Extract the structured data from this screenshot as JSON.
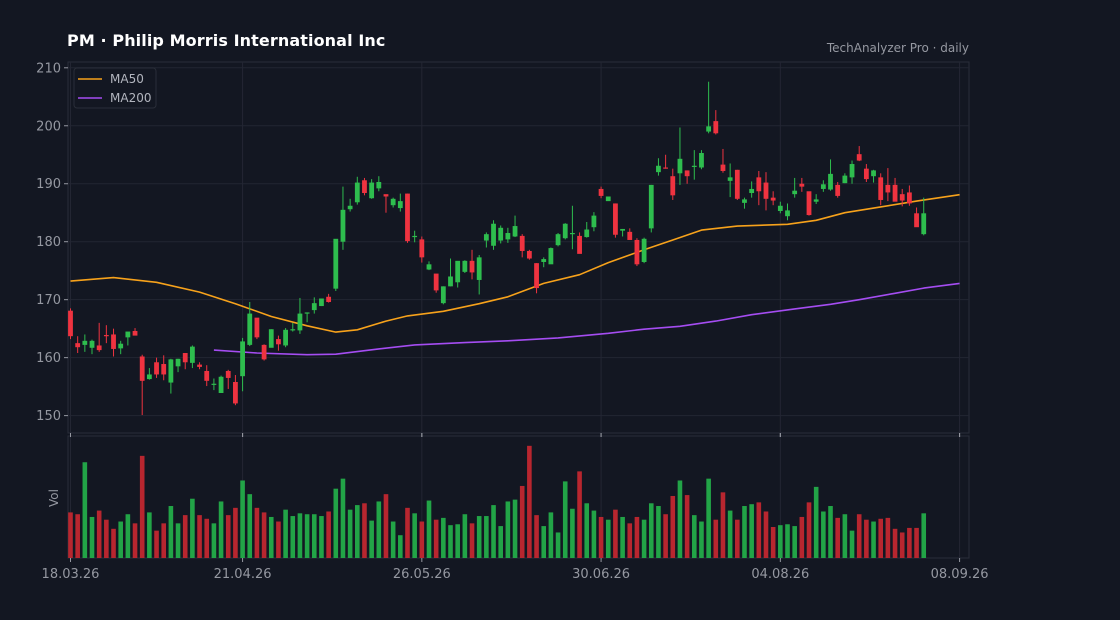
{
  "header": {
    "title": "PM  ·  Philip Morris International Inc",
    "source": "TechAnalyzer Pro · daily"
  },
  "colors": {
    "background": "#131722",
    "up": "#26a69a",
    "up_fill": "#2ebd4e",
    "down": "#ef3340",
    "ma50": "#f7a21b",
    "ma200": "#a54df2",
    "grid": "#232633"
  },
  "chart_data": {
    "type": "candlestick",
    "title": "PM  ·  Philip Morris International Inc",
    "price_axis": {
      "ylim": [
        147,
        211
      ],
      "ticks": [
        150,
        160,
        170,
        180,
        190,
        200,
        210
      ]
    },
    "volume_axis": {
      "label": "Vol"
    },
    "x_ticks": [
      "18.03.26",
      "21.04.26",
      "26.05.26",
      "30.06.26",
      "04.08.26",
      "08.09.26"
    ],
    "x_tick_index": [
      0,
      24,
      49,
      74,
      99,
      124
    ],
    "legend": {
      "placement": "top-left",
      "entries": [
        "MA50",
        "MA200"
      ]
    },
    "grid": true,
    "candles": [
      [
        168.1,
        168.5,
        163.2,
        163.7,
        0.5
      ],
      [
        162.5,
        163.7,
        160.8,
        161.8,
        0.48
      ],
      [
        162.2,
        164.0,
        161.0,
        162.9,
        1.05
      ],
      [
        161.7,
        163.1,
        160.6,
        162.9,
        0.45
      ],
      [
        162.1,
        166.0,
        161.0,
        161.3,
        0.52
      ],
      [
        163.9,
        165.6,
        162.5,
        163.8,
        0.42
      ],
      [
        164.0,
        165.0,
        160.2,
        161.5,
        0.32
      ],
      [
        161.6,
        162.9,
        160.6,
        162.4,
        0.4
      ],
      [
        163.5,
        164.4,
        162.1,
        164.5,
        0.48
      ],
      [
        164.6,
        165.1,
        164.0,
        163.8,
        0.38
      ],
      [
        160.2,
        160.5,
        150.1,
        156.0,
        1.12
      ],
      [
        156.3,
        158.2,
        156.2,
        157.1,
        0.5
      ],
      [
        159.2,
        160.0,
        156.5,
        157.1,
        0.3
      ],
      [
        158.9,
        160.4,
        156.1,
        157.1,
        0.38
      ],
      [
        155.7,
        159.8,
        153.8,
        159.7,
        0.57
      ],
      [
        158.5,
        159.8,
        157.5,
        159.8,
        0.38
      ],
      [
        160.8,
        160.5,
        158.0,
        159.2,
        0.47
      ],
      [
        159.1,
        162.1,
        158.2,
        161.9,
        0.65
      ],
      [
        158.8,
        159.2,
        158.0,
        158.4,
        0.47
      ],
      [
        157.7,
        158.7,
        155.1,
        156.0,
        0.43
      ],
      [
        155.4,
        156.4,
        154.4,
        155.5,
        0.38
      ],
      [
        153.9,
        156.9,
        154.1,
        156.7,
        0.62
      ],
      [
        157.7,
        157.9,
        154.6,
        156.5,
        0.47
      ],
      [
        155.8,
        157.0,
        151.8,
        152.1,
        0.55
      ],
      [
        156.8,
        163.4,
        154.2,
        162.8,
        0.85
      ],
      [
        162.2,
        169.6,
        162.0,
        167.6,
        0.7
      ],
      [
        166.9,
        166.8,
        163.2,
        163.5,
        0.55
      ],
      [
        162.2,
        162.3,
        159.5,
        159.7,
        0.5
      ],
      [
        161.7,
        164.9,
        162.0,
        164.9,
        0.45
      ],
      [
        163.2,
        163.8,
        161.2,
        162.3,
        0.4
      ],
      [
        162.1,
        165.1,
        161.8,
        164.8,
        0.53
      ],
      [
        164.9,
        166.0,
        164.5,
        164.9,
        0.46
      ],
      [
        164.7,
        170.3,
        164.1,
        167.6,
        0.49
      ],
      [
        167.8,
        167.8,
        166.1,
        167.8,
        0.48
      ],
      [
        168.2,
        170.4,
        167.6,
        169.4,
        0.48
      ],
      [
        168.9,
        170.2,
        168.9,
        170.2,
        0.46
      ],
      [
        170.5,
        171.0,
        169.5,
        169.6,
        0.51
      ],
      [
        171.9,
        180.4,
        171.5,
        180.5,
        0.76
      ],
      [
        180.0,
        189.5,
        178.6,
        185.5,
        0.87
      ],
      [
        185.6,
        187.4,
        185.2,
        186.2,
        0.53
      ],
      [
        186.8,
        191.2,
        186.4,
        190.2,
        0.58
      ],
      [
        190.6,
        191.0,
        188.0,
        188.4,
        0.6
      ],
      [
        187.5,
        190.8,
        187.4,
        190.2,
        0.41
      ],
      [
        189.2,
        191.3,
        188.7,
        190.3,
        0.62
      ],
      [
        188.2,
        188.1,
        185.0,
        187.8,
        0.7
      ],
      [
        186.3,
        187.6,
        185.9,
        187.4,
        0.4
      ],
      [
        185.8,
        188.3,
        185.2,
        187.0,
        0.25
      ],
      [
        188.3,
        188.3,
        179.8,
        180.1,
        0.55
      ],
      [
        181.0,
        181.9,
        179.9,
        181.0,
        0.49
      ],
      [
        180.4,
        180.9,
        176.4,
        177.3,
        0.4
      ],
      [
        175.2,
        176.6,
        175.1,
        176.1,
        0.63
      ],
      [
        174.5,
        174.3,
        171.2,
        171.6,
        0.42
      ],
      [
        169.4,
        172.3,
        169.2,
        172.3,
        0.44
      ],
      [
        172.3,
        177.1,
        172.3,
        174.0,
        0.36
      ],
      [
        173.0,
        176.3,
        172.1,
        176.7,
        0.37
      ],
      [
        174.8,
        176.8,
        174.6,
        176.7,
        0.48
      ],
      [
        176.7,
        178.6,
        173.5,
        174.7,
        0.38
      ],
      [
        173.4,
        177.7,
        170.9,
        177.3,
        0.46
      ],
      [
        180.2,
        181.6,
        179.0,
        181.3,
        0.46
      ],
      [
        179.3,
        183.7,
        178.6,
        183.1,
        0.58
      ],
      [
        180.2,
        182.8,
        179.7,
        182.4,
        0.35
      ],
      [
        180.4,
        182.4,
        179.8,
        181.5,
        0.62
      ],
      [
        180.9,
        184.5,
        180.8,
        182.7,
        0.64
      ],
      [
        181.0,
        181.3,
        177.3,
        178.4,
        0.79
      ],
      [
        178.4,
        178.6,
        176.9,
        177.1,
        1.23
      ],
      [
        176.3,
        176.3,
        171.1,
        172.0,
        0.47
      ],
      [
        176.5,
        177.3,
        175.6,
        177.0,
        0.35
      ],
      [
        176.1,
        179.0,
        176.2,
        178.9,
        0.5
      ],
      [
        179.4,
        181.5,
        179.2,
        181.3,
        0.28
      ],
      [
        180.6,
        183.2,
        180.4,
        183.1,
        0.84
      ],
      [
        181.5,
        186.2,
        178.7,
        181.5,
        0.54
      ],
      [
        181.0,
        181.6,
        178.0,
        177.9,
        0.95
      ],
      [
        180.8,
        183.4,
        180.7,
        182.1,
        0.6
      ],
      [
        182.5,
        185.1,
        181.8,
        184.5,
        0.52
      ],
      [
        189.1,
        189.5,
        187.5,
        187.9,
        0.45
      ],
      [
        187.0,
        187.4,
        187.2,
        187.8,
        0.42
      ],
      [
        186.6,
        186.6,
        180.7,
        181.2,
        0.53
      ],
      [
        181.9,
        182.2,
        180.9,
        182.2,
        0.45
      ],
      [
        181.7,
        182.3,
        180.6,
        180.3,
        0.38
      ],
      [
        180.3,
        180.6,
        175.8,
        176.1,
        0.45
      ],
      [
        176.5,
        180.7,
        176.3,
        180.5,
        0.42
      ],
      [
        182.3,
        189.8,
        181.6,
        189.8,
        0.6
      ],
      [
        192.0,
        194.4,
        191.4,
        193.1,
        0.57
      ],
      [
        192.8,
        195.0,
        192.6,
        192.6,
        0.48
      ],
      [
        191.3,
        192.6,
        187.2,
        188.0,
        0.68
      ],
      [
        191.8,
        199.7,
        189.8,
        194.3,
        0.85
      ],
      [
        192.3,
        192.3,
        190.0,
        191.3,
        0.69
      ],
      [
        192.9,
        195.8,
        190.7,
        193.1,
        0.47
      ],
      [
        192.8,
        195.8,
        192.5,
        195.3,
        0.4
      ],
      [
        199.0,
        207.6,
        198.7,
        199.9,
        0.87
      ],
      [
        200.8,
        202.7,
        198.5,
        198.7,
        0.42
      ],
      [
        193.3,
        196.0,
        191.9,
        192.2,
        0.72
      ],
      [
        190.5,
        193.5,
        187.7,
        191.1,
        0.52
      ],
      [
        192.4,
        192.4,
        187.2,
        187.4,
        0.42
      ],
      [
        186.7,
        187.6,
        185.7,
        187.3,
        0.57
      ],
      [
        188.4,
        190.4,
        187.6,
        189.1,
        0.59
      ],
      [
        191.1,
        192.2,
        186.3,
        188.7,
        0.61
      ],
      [
        190.2,
        192.0,
        185.4,
        187.4,
        0.51
      ],
      [
        187.6,
        188.7,
        186.3,
        187.1,
        0.34
      ],
      [
        185.3,
        186.9,
        184.9,
        186.2,
        0.36
      ],
      [
        184.4,
        186.6,
        183.7,
        185.4,
        0.37
      ],
      [
        188.2,
        191.0,
        187.6,
        188.8,
        0.35
      ],
      [
        190.0,
        191.0,
        188.6,
        189.5,
        0.45
      ],
      [
        188.7,
        188.5,
        184.5,
        184.6,
        0.61
      ],
      [
        186.9,
        188.2,
        186.5,
        187.3,
        0.78
      ],
      [
        189.1,
        190.6,
        188.6,
        189.9,
        0.51
      ],
      [
        189.0,
        194.2,
        188.8,
        191.7,
        0.57
      ],
      [
        189.8,
        190.3,
        187.6,
        187.9,
        0.44
      ],
      [
        190.1,
        191.8,
        190.1,
        191.4,
        0.48
      ],
      [
        191.1,
        194.0,
        190.0,
        193.4,
        0.3
      ],
      [
        195.1,
        196.5,
        193.9,
        194.0,
        0.48
      ],
      [
        192.6,
        193.4,
        190.3,
        190.8,
        0.42
      ],
      [
        191.3,
        192.4,
        190.2,
        192.3,
        0.4
      ],
      [
        191.1,
        191.8,
        186.3,
        187.2,
        0.43
      ],
      [
        189.8,
        192.7,
        187.0,
        188.5,
        0.44
      ],
      [
        189.8,
        191.0,
        187.1,
        186.9,
        0.32
      ],
      [
        188.2,
        189.1,
        186.1,
        187.1,
        0.28
      ],
      [
        188.5,
        189.7,
        186.2,
        186.6,
        0.33
      ],
      [
        184.9,
        185.9,
        182.6,
        182.5,
        0.33
      ],
      [
        181.3,
        187.6,
        181.1,
        184.9,
        0.49
      ]
    ],
    "ma50": [
      [
        0,
        173.2
      ],
      [
        6,
        173.8
      ],
      [
        12,
        173.0
      ],
      [
        18,
        171.3
      ],
      [
        23,
        169.3
      ],
      [
        28,
        167.1
      ],
      [
        33,
        165.5
      ],
      [
        37,
        164.4
      ],
      [
        40,
        164.8
      ],
      [
        44,
        166.3
      ],
      [
        47,
        167.2
      ],
      [
        52,
        168.0
      ],
      [
        57,
        169.3
      ],
      [
        61,
        170.5
      ],
      [
        66,
        172.8
      ],
      [
        71,
        174.3
      ],
      [
        75,
        176.4
      ],
      [
        80,
        178.6
      ],
      [
        84,
        180.3
      ],
      [
        88,
        182.0
      ],
      [
        93,
        182.7
      ],
      [
        100,
        183.0
      ],
      [
        104,
        183.7
      ],
      [
        108,
        185.0
      ],
      [
        113,
        186.0
      ],
      [
        118,
        187.0
      ],
      [
        124,
        188.1
      ]
    ],
    "ma200": [
      [
        20,
        161.3
      ],
      [
        26,
        160.8
      ],
      [
        33,
        160.5
      ],
      [
        37,
        160.6
      ],
      [
        43,
        161.5
      ],
      [
        48,
        162.2
      ],
      [
        55,
        162.6
      ],
      [
        61,
        162.9
      ],
      [
        68,
        163.4
      ],
      [
        75,
        164.2
      ],
      [
        80,
        164.9
      ],
      [
        85,
        165.4
      ],
      [
        90,
        166.3
      ],
      [
        95,
        167.4
      ],
      [
        101,
        168.4
      ],
      [
        106,
        169.2
      ],
      [
        110,
        170.0
      ],
      [
        115,
        171.1
      ],
      [
        119,
        172.0
      ],
      [
        124,
        172.8
      ]
    ]
  }
}
